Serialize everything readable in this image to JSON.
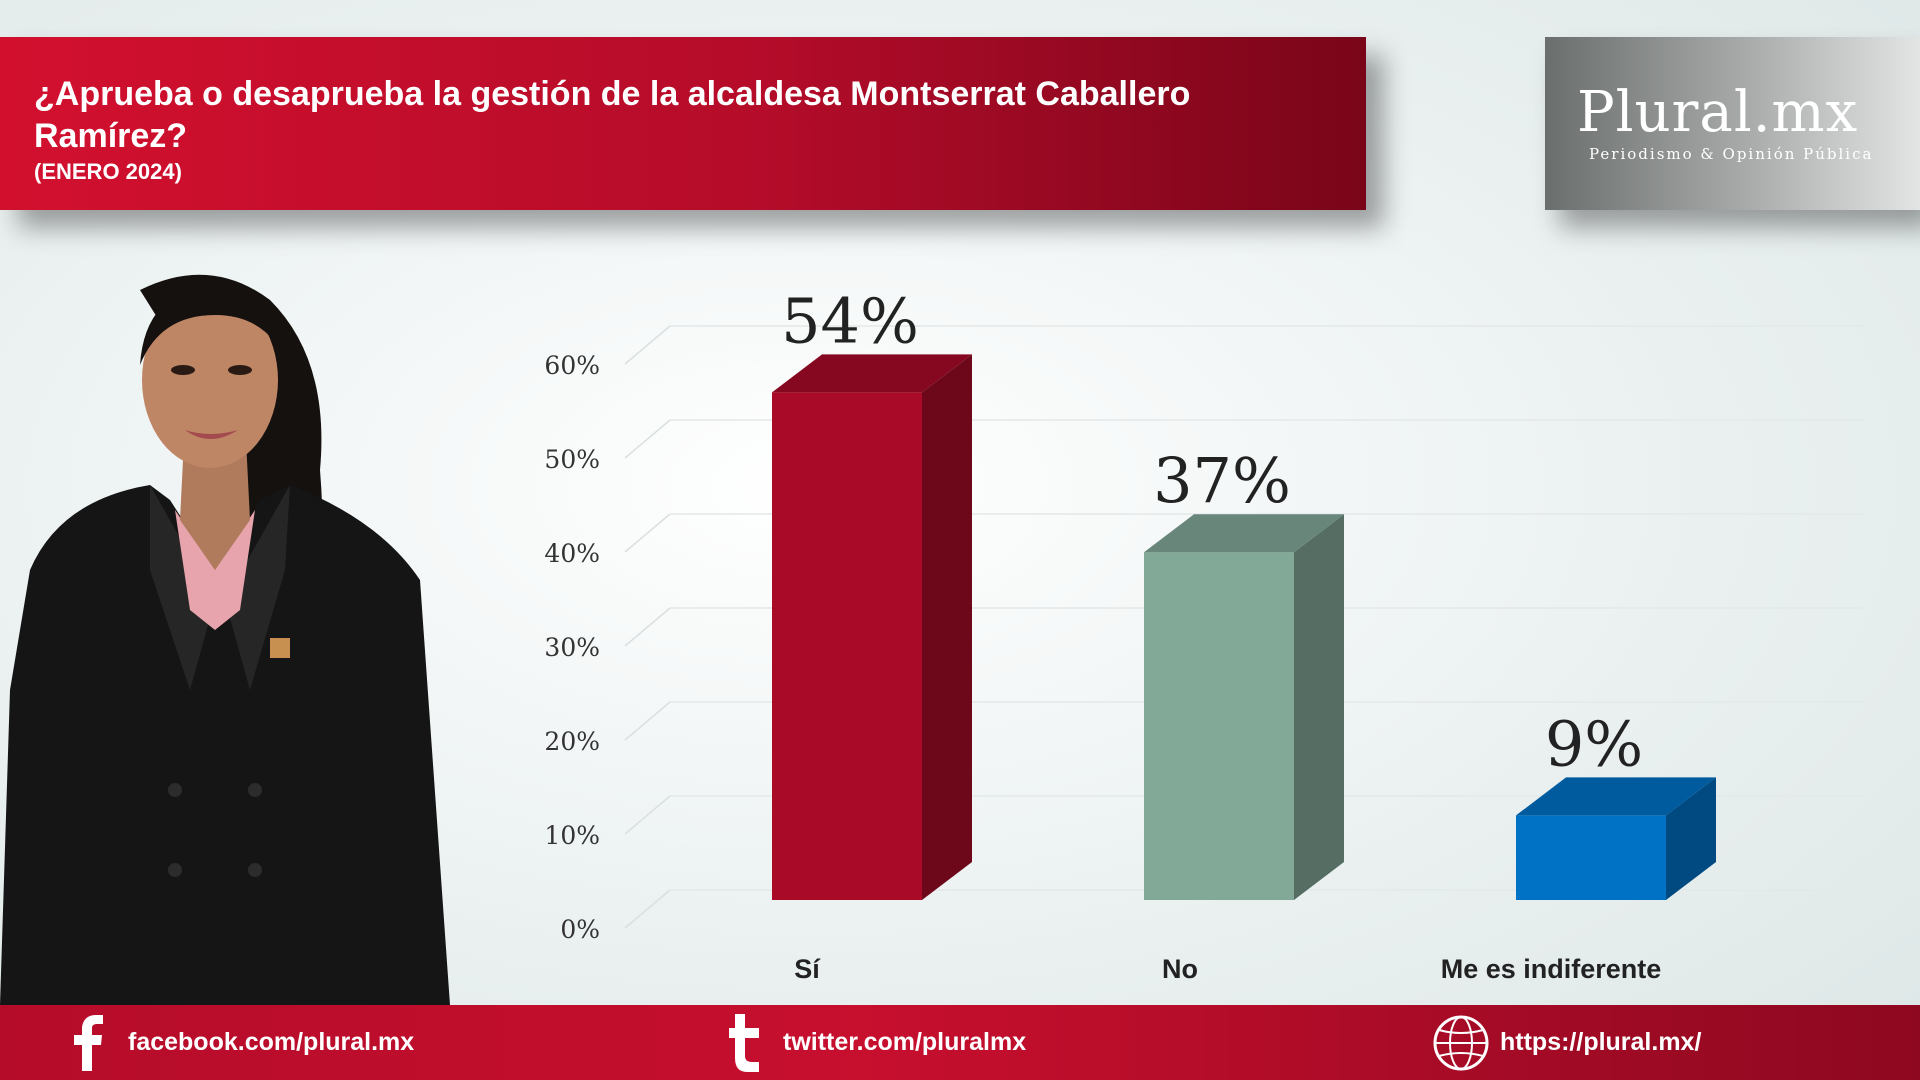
{
  "header": {
    "title": "¿Aprueba o desaprueba la gestión de la alcaldesa Montserrat Caballero Ramírez?",
    "subtitle": "(ENERO 2024)"
  },
  "logo": {
    "name": "Plural.mx",
    "tagline": "Periodismo & Opinión Pública"
  },
  "chart_data": {
    "type": "bar",
    "categories": [
      "Sí",
      "No",
      "Me es indiferente"
    ],
    "values": [
      54,
      37,
      9
    ],
    "value_labels": [
      "54%",
      "37%",
      "9%"
    ],
    "colors": [
      "#a80a28",
      "#82a898",
      "#0072c6"
    ],
    "yticks": [
      "0%",
      "10%",
      "20%",
      "30%",
      "40%",
      "50%",
      "60%"
    ],
    "ylim": [
      0,
      70
    ],
    "grid": true
  },
  "footer": {
    "facebook": "facebook.com/plural.mx",
    "twitter": "twitter.com/pluralmx",
    "website": "https://plural.mx/"
  },
  "icons": {
    "facebook": "facebook-icon",
    "twitter": "twitter-icon",
    "website": "globe-icon"
  }
}
